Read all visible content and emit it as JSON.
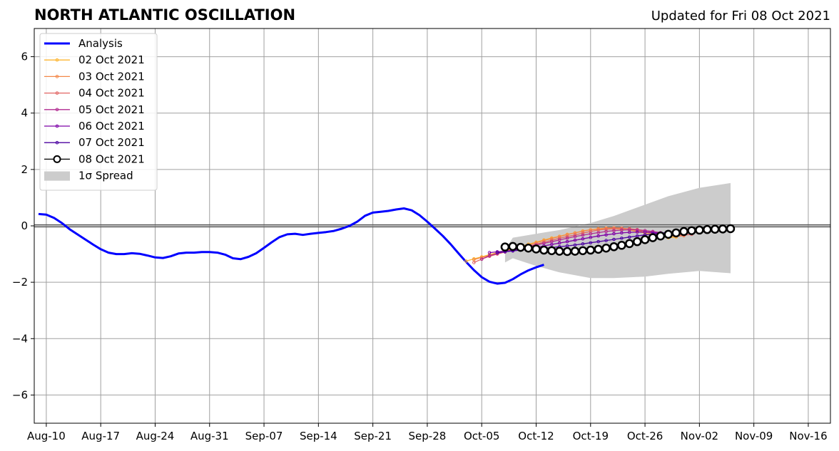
{
  "header": {
    "title": "NORTH ATLANTIC OSCILLATION",
    "subtitle": "Updated for Fri 08 Oct 2021"
  },
  "chart_data": {
    "type": "line",
    "title": "NORTH ATLANTIC OSCILLATION",
    "subtitle": "Updated for Fri 08 Oct 2021",
    "xlabel": "",
    "ylabel": "",
    "xlim": [
      "2021-08-09",
      "2021-11-19"
    ],
    "ylim": [
      -7,
      7
    ],
    "grid": true,
    "legend_position": "top-left",
    "x_ticks": [
      "Aug-10",
      "Aug-17",
      "Aug-24",
      "Aug-31",
      "Sep-07",
      "Sep-14",
      "Sep-21",
      "Sep-28",
      "Oct-05",
      "Oct-12",
      "Oct-19",
      "Oct-26",
      "Nov-02",
      "Nov-09",
      "Nov-16"
    ],
    "x_tick_dates": [
      "2021-08-10",
      "2021-08-17",
      "2021-08-24",
      "2021-08-31",
      "2021-09-07",
      "2021-09-14",
      "2021-09-21",
      "2021-09-28",
      "2021-10-05",
      "2021-10-12",
      "2021-10-19",
      "2021-10-26",
      "2021-11-02",
      "2021-11-09",
      "2021-11-16"
    ],
    "y_ticks": [
      "6",
      "4",
      "2",
      "0",
      "−2",
      "−4",
      "−6"
    ],
    "y_tick_values": [
      6,
      4,
      2,
      0,
      -2,
      -4,
      -6
    ],
    "colors": {
      "analysis": "#0000ff",
      "spread": "#cccccc",
      "grid": "#a0a0a0",
      "zero_line": "#555555"
    },
    "analysis": {
      "name": "Analysis",
      "start": "2021-08-09",
      "values": [
        0.42,
        0.4,
        0.28,
        0.1,
        -0.12,
        -0.3,
        -0.48,
        -0.66,
        -0.83,
        -0.95,
        -1.0,
        -1.0,
        -0.97,
        -0.99,
        -1.05,
        -1.12,
        -1.14,
        -1.08,
        -0.98,
        -0.95,
        -0.95,
        -0.93,
        -0.93,
        -0.95,
        -1.02,
        -1.15,
        -1.18,
        -1.1,
        -0.97,
        -0.78,
        -0.58,
        -0.4,
        -0.3,
        -0.28,
        -0.32,
        -0.28,
        -0.25,
        -0.22,
        -0.18,
        -0.1,
        0.0,
        0.15,
        0.36,
        0.47,
        0.5,
        0.53,
        0.58,
        0.62,
        0.55,
        0.38,
        0.15,
        -0.1,
        -0.36,
        -0.65,
        -0.97,
        -1.28,
        -1.57,
        -1.82,
        -1.98,
        -2.05,
        -2.02,
        -1.89,
        -1.72,
        -1.58,
        -1.47,
        -1.38
      ]
    },
    "spread": {
      "name": "1σ Spread",
      "dates": [
        "2021-10-08",
        "2021-10-09",
        "2021-10-12",
        "2021-10-15",
        "2021-10-19",
        "2021-10-22",
        "2021-10-26",
        "2021-10-29",
        "2021-11-02",
        "2021-11-06"
      ],
      "upper": [
        -0.85,
        -0.42,
        -0.28,
        -0.15,
        0.1,
        0.35,
        0.75,
        1.05,
        1.35,
        1.52
      ],
      "lower": [
        -1.3,
        -1.15,
        -1.42,
        -1.65,
        -1.85,
        -1.85,
        -1.8,
        -1.7,
        -1.6,
        -1.68
      ]
    },
    "series": [
      {
        "name": "02 Oct 2021",
        "color": "#fdb42f",
        "start": "2021-10-03",
        "values": [
          -1.25,
          -1.17,
          -1.1,
          -1.02,
          -0.95,
          -0.87,
          -0.8,
          -0.73,
          -0.65,
          -0.58,
          -0.5,
          -0.43,
          -0.37,
          -0.3,
          -0.25,
          -0.18,
          -0.14,
          -0.12,
          -0.1,
          -0.1,
          -0.12,
          -0.15,
          -0.2,
          -0.26,
          -0.33,
          -0.38,
          -0.42,
          -0.4
        ]
      },
      {
        "name": "03 Oct 2021",
        "color": "#f48849",
        "start": "2021-10-04",
        "values": [
          -1.2,
          -1.12,
          -1.05,
          -0.98,
          -0.9,
          -0.83,
          -0.76,
          -0.68,
          -0.6,
          -0.52,
          -0.45,
          -0.38,
          -0.31,
          -0.25,
          -0.19,
          -0.14,
          -0.1,
          -0.08,
          -0.07,
          -0.08,
          -0.11,
          -0.16,
          -0.22,
          -0.28,
          -0.33,
          -0.36,
          -0.37,
          -0.35
        ]
      },
      {
        "name": "04 Oct 2021",
        "color": "#e16462",
        "start": "2021-10-04",
        "values": [
          -1.3,
          -1.18,
          -1.08,
          -1.0,
          -0.93,
          -0.86,
          -0.79,
          -0.72,
          -0.65,
          -0.58,
          -0.51,
          -0.44,
          -0.38,
          -0.32,
          -0.26,
          -0.2,
          -0.15,
          -0.12,
          -0.1,
          -0.09,
          -0.1,
          -0.13,
          -0.17,
          -0.22,
          -0.27,
          -0.31,
          -0.33,
          -0.33,
          -0.3
        ]
      },
      {
        "name": "05 Oct 2021",
        "color": "#b12a90",
        "start": "2021-10-05",
        "values": [
          -1.18,
          -1.06,
          -0.98,
          -0.92,
          -0.86,
          -0.8,
          -0.74,
          -0.68,
          -0.62,
          -0.56,
          -0.5,
          -0.44,
          -0.38,
          -0.33,
          -0.28,
          -0.24,
          -0.2,
          -0.17,
          -0.15,
          -0.14,
          -0.15,
          -0.17,
          -0.2,
          -0.24,
          -0.27,
          -0.28,
          -0.27,
          -0.24
        ]
      },
      {
        "name": "06 Oct 2021",
        "color": "#7e03a8",
        "start": "2021-10-06",
        "values": [
          -0.95,
          -0.92,
          -0.9,
          -0.87,
          -0.84,
          -0.8,
          -0.76,
          -0.71,
          -0.66,
          -0.61,
          -0.56,
          -0.51,
          -0.46,
          -0.41,
          -0.36,
          -0.32,
          -0.28,
          -0.25,
          -0.23,
          -0.22,
          -0.22,
          -0.24,
          -0.26,
          -0.27,
          -0.27,
          -0.25,
          -0.22,
          -0.2
        ]
      },
      {
        "name": "07 Oct 2021",
        "color": "#4b03a1",
        "start": "2021-10-07",
        "values": [
          -0.95,
          -0.92,
          -0.89,
          -0.86,
          -0.84,
          -0.82,
          -0.8,
          -0.77,
          -0.74,
          -0.71,
          -0.68,
          -0.64,
          -0.6,
          -0.56,
          -0.52,
          -0.48,
          -0.44,
          -0.4,
          -0.36,
          -0.32,
          -0.29,
          -0.26,
          -0.23,
          -0.21,
          -0.19,
          -0.17,
          -0.16,
          -0.15
        ]
      },
      {
        "name": "08 Oct 2021",
        "color": "#000000",
        "start": "2021-10-08",
        "values": [
          -0.75,
          -0.73,
          -0.76,
          -0.79,
          -0.82,
          -0.86,
          -0.88,
          -0.9,
          -0.91,
          -0.9,
          -0.88,
          -0.86,
          -0.83,
          -0.79,
          -0.74,
          -0.69,
          -0.63,
          -0.56,
          -0.49,
          -0.42,
          -0.36,
          -0.3,
          -0.25,
          -0.2,
          -0.17,
          -0.15,
          -0.13,
          -0.12,
          -0.11,
          -0.1
        ]
      }
    ],
    "legend": [
      "Analysis",
      "02 Oct 2021",
      "03 Oct 2021",
      "04 Oct 2021",
      "05 Oct 2021",
      "06 Oct 2021",
      "07 Oct 2021",
      "08 Oct 2021",
      "1σ Spread"
    ]
  }
}
